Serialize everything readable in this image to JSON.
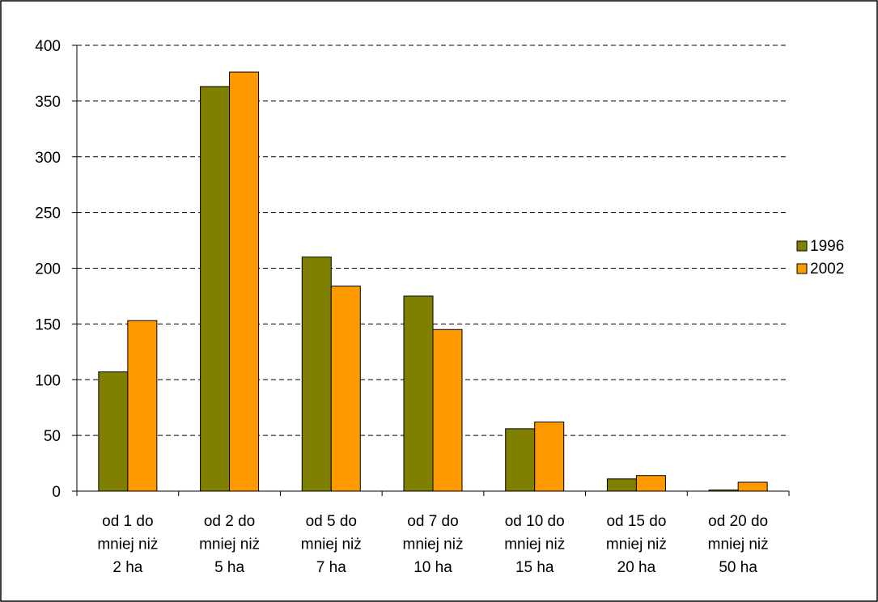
{
  "chart_data": {
    "type": "bar",
    "title": "",
    "xlabel": "",
    "ylabel": "",
    "categories": [
      [
        "od 1 do",
        "mniej niż",
        "2 ha"
      ],
      [
        "od 2 do",
        "mniej niż",
        "5 ha"
      ],
      [
        "od 5 do",
        "mniej niż",
        "7 ha"
      ],
      [
        "od 7 do",
        "mniej niż",
        "10 ha"
      ],
      [
        "od 10 do",
        "mniej niż",
        "15 ha"
      ],
      [
        "od 15 do",
        "mniej niż",
        "20 ha"
      ],
      [
        "od 20 do",
        "mniej niż",
        "50 ha"
      ]
    ],
    "series": [
      {
        "name": "1996",
        "color": "#808000",
        "values": [
          107,
          363,
          210,
          175,
          56,
          11,
          1
        ]
      },
      {
        "name": "2002",
        "color": "#FF9900",
        "values": [
          153,
          376,
          184,
          145,
          62,
          14,
          8
        ]
      }
    ],
    "ylim": [
      0,
      400
    ],
    "yticks": [
      0,
      50,
      100,
      150,
      200,
      250,
      300,
      350,
      400
    ],
    "grid": true,
    "gridline_style": "dashed",
    "legend_position": "right"
  }
}
